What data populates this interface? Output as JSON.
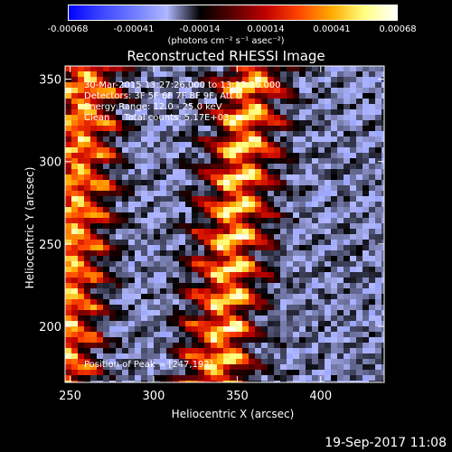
{
  "colorbar": {
    "ticks": [
      "-0.00068",
      "-0.00041",
      "-0.00014",
      "0.00014",
      "0.00041",
      "0.00068"
    ],
    "units": "(photons cm⁻² s⁻¹ asec⁻²)",
    "colors": [
      "#0000ff",
      "#3c46ff",
      "#6f7cff",
      "#b0b8ff",
      "#000000",
      "#5a0000",
      "#c00000",
      "#ff4400",
      "#ffaa00",
      "#ffff80",
      "#ffffff"
    ]
  },
  "chart_data": {
    "type": "heatmap",
    "title": "Reconstructed RHESSI Image",
    "xlabel": "Heliocentric X (arcsec)",
    "ylabel": "Heliocentric Y (arcsec)",
    "xlim": [
      247,
      438
    ],
    "ylim": [
      166,
      358
    ],
    "xticks": [
      250,
      300,
      350,
      400
    ],
    "yticks": [
      200,
      250,
      300,
      350
    ],
    "bright_streaks": [
      {
        "x_at_y358": 258,
        "x_at_y166": 242
      },
      {
        "x_at_y358": 357,
        "x_at_y166": 335
      }
    ],
    "peak": [
      247,
      192
    ]
  },
  "overlay": {
    "time_range": "30-Mar-2015 13:27:26.000 to 13:37:26.000",
    "detectors": "Detectors: 3F 5F 6F 7F 8F 9F, Att 0",
    "energy": "Energy Range: 12.0 - 25.0 keV",
    "clean": "Clean     Total counts: 5.17E+03",
    "peak_text": "Position of Peak = [247,192]"
  },
  "timestamp": "19-Sep-2017 11:08"
}
